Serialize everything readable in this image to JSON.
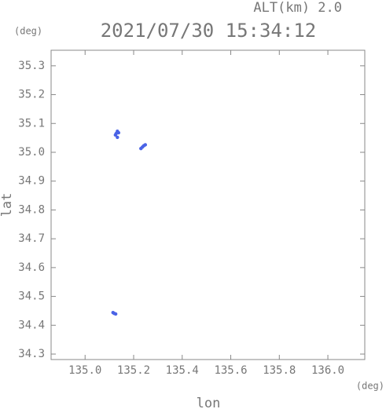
{
  "chart_data": {
    "type": "scatter",
    "title": "2021/07/30 15:34:12",
    "annotations": [
      "ALT(km)  2.0",
      "(deg)",
      "(deg)"
    ],
    "xlabel": "lon",
    "ylabel": "lat",
    "x": [
      135.133,
      135.128,
      135.125,
      135.133,
      135.138,
      135.23,
      135.236,
      135.242,
      135.248,
      135.115,
      135.12,
      135.126
    ],
    "y": [
      35.073,
      35.065,
      35.06,
      35.052,
      35.068,
      35.013,
      35.018,
      35.023,
      35.026,
      34.444,
      34.441,
      34.439
    ],
    "color": "#4a63e6",
    "xlim": [
      134.86,
      136.152
    ],
    "ylim": [
      34.281,
      35.354
    ],
    "xticks": [
      {
        "value": 135.0,
        "label": "135.0"
      },
      135.2,
      135.4,
      135.6,
      135.8,
      {
        "value": 136.0,
        "label": "136.0"
      }
    ],
    "yticks": [
      34.3,
      34.4,
      34.5,
      34.6,
      34.7,
      34.8,
      34.9,
      {
        "value": 35.0,
        "label": "35.0"
      },
      35.1,
      35.2,
      35.3
    ],
    "grid": false
  }
}
